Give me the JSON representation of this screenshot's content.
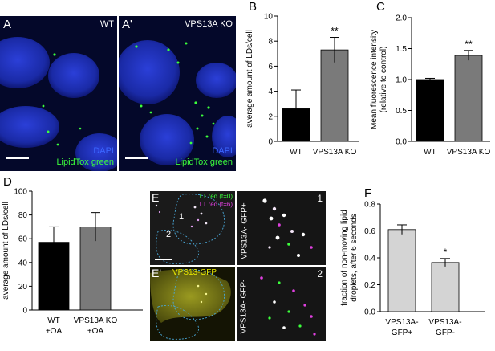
{
  "panel_a": {
    "letter": "A",
    "genotype": "WT",
    "stain_dapi": "DAPI",
    "stain_lipidtox": "LipidTox green"
  },
  "panel_a_prime": {
    "letter": "A'",
    "genotype": "VPS13A KO",
    "stain_dapi": "DAPI",
    "stain_lipidtox": "LipidTox green"
  },
  "panel_e": {
    "letter": "E",
    "legend_t0": "LT red (t=0)",
    "legend_t6": "LT red (t=6)",
    "cell1": "1",
    "cell2": "2"
  },
  "panel_e_prime": {
    "letter": "E'",
    "label": "VPS13-GFP"
  },
  "zoom1": {
    "number": "1",
    "label": "VPS13A- GFP+"
  },
  "zoom2": {
    "number": "2",
    "label": "VPS13A- GFP-"
  },
  "chart_data": [
    {
      "panel": "B",
      "type": "bar",
      "categories": [
        "WT",
        "VPS13A KO"
      ],
      "values": [
        2.6,
        7.3
      ],
      "errors": [
        1.5,
        1.0
      ],
      "colors": [
        "#000000",
        "#7a7a7a"
      ],
      "ylabel": "average amount of LDs/cell",
      "ylim": [
        0,
        10
      ],
      "yticks": [
        0,
        2,
        4,
        6,
        8,
        10
      ],
      "significance": [
        "",
        "**"
      ]
    },
    {
      "panel": "C",
      "type": "bar",
      "categories": [
        "WT",
        "VPS13A KO"
      ],
      "values": [
        1.0,
        1.39
      ],
      "errors": [
        0.02,
        0.08
      ],
      "colors": [
        "#000000",
        "#7a7a7a"
      ],
      "ylabel": "Mean fluorescence intensity (relative to control)",
      "ylabel_lines": [
        "Mean fluorescence intensity",
        "(relative to control)"
      ],
      "ylim": [
        0,
        2.0
      ],
      "yticks": [
        0.0,
        0.5,
        1.0,
        1.5,
        2.0
      ],
      "ytick_labels": [
        "0.0",
        "0.5",
        "1.0",
        "1.5",
        "2.0"
      ],
      "significance": [
        "",
        "**"
      ]
    },
    {
      "panel": "D",
      "type": "bar",
      "categories": [
        "WT +OA",
        "VPS13A KO +OA"
      ],
      "category_lines": [
        [
          "WT",
          "+OA"
        ],
        [
          "VPS13A KO",
          "+OA"
        ]
      ],
      "values": [
        57,
        70
      ],
      "errors": [
        13,
        12
      ],
      "colors": [
        "#000000",
        "#7a7a7a"
      ],
      "ylabel": "average amount of LDs/cell",
      "ylim": [
        0,
        100
      ],
      "yticks": [
        0,
        20,
        40,
        60,
        80,
        100
      ],
      "significance": [
        "",
        ""
      ]
    },
    {
      "panel": "F",
      "type": "bar",
      "categories": [
        "VPS13A- GFP+",
        "VPS13A- GFP-"
      ],
      "category_lines": [
        [
          "VPS13A-",
          "GFP+"
        ],
        [
          "VPS13A-",
          "GFP-"
        ]
      ],
      "values": [
        0.61,
        0.365
      ],
      "errors": [
        0.035,
        0.03
      ],
      "colors": [
        "#d4d4d4",
        "#d4d4d4"
      ],
      "ylabel": "fraction of non-moving lipid droplets, after 6 seconds",
      "ylabel_lines": [
        "fraction of non-moving lipid",
        "droplets, after 6 seconds"
      ],
      "ylim": [
        0,
        0.8
      ],
      "yticks": [
        0.0,
        0.2,
        0.4,
        0.6,
        0.8
      ],
      "ytick_labels": [
        "0.0",
        "0.2",
        "0.4",
        "0.6",
        "0.8"
      ],
      "significance": [
        "",
        "*"
      ]
    }
  ]
}
